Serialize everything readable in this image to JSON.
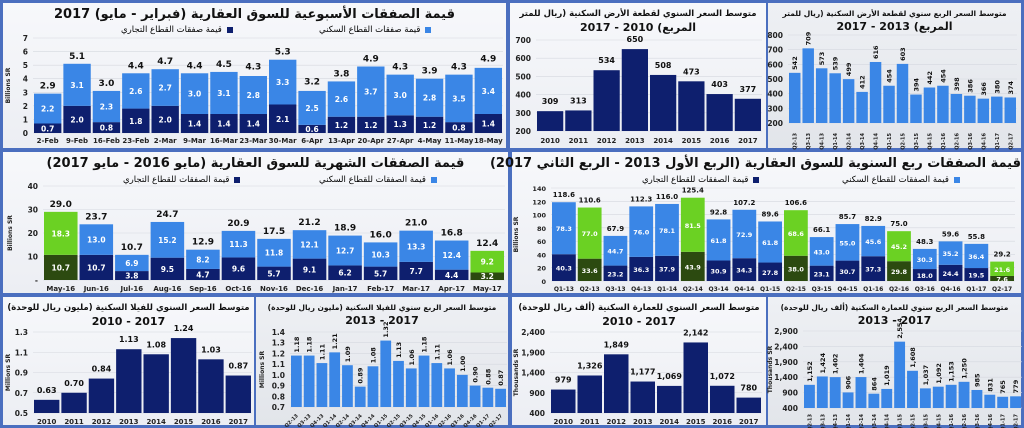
{
  "colors": {
    "commercial": "#0e1f6e",
    "residential": "#3a86e6",
    "highlight_residential": "#6bd123",
    "highlight_commercial": "#2c4a10",
    "text": "#111111"
  },
  "panels": {
    "weekly": {
      "title": "قيمة الصفقات الأسبوعية للسوق العقارية (فبراير - مايو) 2017",
      "legend_commercial": "قيمة صفقات القطاع التجاري",
      "legend_residential": "قيمة صفقات القطاع السكني"
    },
    "land_annual": {
      "title_line1": "متوسط السعر السنوي لقطعة الأرض السكنية (ريال للمتر",
      "title_line2": "المربع) 2010 - 2017"
    },
    "land_quarterly": {
      "title_line1": "متوسط السعر الربع سنوي لقطعة الأرض السكنية (ريال للمتر",
      "title_line2": "المربع) 2013 - 2017"
    },
    "monthly": {
      "title": "قيمة الصفقات الشهرية للسوق العقارية (مايو 2016 - مايو 2017)",
      "legend_commercial": "قيمة الصفقات للقطاع التجاري",
      "legend_residential": "قيمة الصفقات للقطاع السكني"
    },
    "quarterly": {
      "title": "قيمة الصفقات ربع السنوية للسوق العقارية (الربع الأول 2013 - الربع الثاني 2017)",
      "legend_commercial": "قيمة الصفقات للقطاع التجاري",
      "legend_residential": "قيمة الصفقات للقطاع السكني"
    },
    "villa_annual": {
      "title_line1": "متوسط السعر السنوي للفيلا السكنية  (مليون ريال للوحدة)",
      "title_line2": "2017 - 2010"
    },
    "villa_quarterly": {
      "title_line1": "متوسط السعر الربع سنوي للفيلا السكنية  (مليون ريال للوحدة)",
      "title_line2": "2017 - 2013"
    },
    "apt_annual": {
      "title_line1": "متوسط السعر السنوي للعمارة السكنية  (ألف ريال للوحدة)",
      "title_line2": "2017 - 2010"
    },
    "apt_quarterly": {
      "title_line1": "متوسط السعر الربع سنوي للعمارة السكنية  (ألف ريال للوحدة)",
      "title_line2": "2017 - 2013"
    }
  },
  "chart_data": [
    {
      "type": "bar",
      "stacked": true,
      "ylabel": "Billions SR",
      "ylim": [
        0,
        7
      ],
      "yticks": [
        "0",
        "1",
        "2",
        "3",
        "4",
        "5",
        "6",
        "7"
      ],
      "decimals": 1,
      "categories": [
        "2-Feb",
        "9-Feb",
        "16-Feb",
        "23-Feb",
        "2-Mar",
        "9-Mar",
        "16-Mar",
        "23-Mar",
        "30-Mar",
        "6-Apr",
        "13-Apr",
        "20-Apr",
        "27-Apr",
        "4-May",
        "11-May",
        "18-May"
      ],
      "commercial": [
        0.7,
        2.0,
        0.8,
        1.8,
        2.0,
        1.4,
        1.4,
        1.4,
        2.1,
        0.6,
        1.2,
        1.2,
        1.3,
        1.2,
        0.8,
        1.4
      ],
      "residential": [
        2.2,
        3.1,
        2.3,
        2.6,
        2.7,
        3.0,
        3.1,
        2.8,
        3.3,
        2.5,
        2.6,
        3.7,
        3.0,
        2.8,
        3.5,
        3.4
      ],
      "totals": [
        2.9,
        5.1,
        3.0,
        4.4,
        4.7,
        4.4,
        4.5,
        4.3,
        5.3,
        3.2,
        3.8,
        4.9,
        4.3,
        3.9,
        4.3,
        4.9
      ],
      "highlight": []
    },
    {
      "type": "bar",
      "ylabel": "",
      "ylim": [
        200,
        700
      ],
      "yticks": [
        "200",
        "300",
        "400",
        "500",
        "600",
        "700"
      ],
      "decimals": 0,
      "color": "commercial",
      "categories": [
        "2010",
        "2011",
        "2012",
        "2013",
        "2014",
        "2015",
        "2016",
        "2017"
      ],
      "values": [
        309,
        313,
        534,
        650,
        508,
        473,
        403,
        377
      ]
    },
    {
      "type": "bar",
      "ylabel": "",
      "ylim": [
        200,
        800
      ],
      "yticks": [
        "200",
        "300",
        "400",
        "500",
        "600",
        "700",
        "800"
      ],
      "decimals": 0,
      "color": "residential",
      "categories": [
        "Q2-13",
        "Q3-13",
        "Q4-13",
        "Q1-14",
        "Q2-14",
        "Q3-14",
        "Q4-14",
        "Q1-15",
        "Q2-15",
        "Q3-15",
        "Q4-15",
        "Q1-16",
        "Q2-16",
        "Q3-16",
        "Q4-16",
        "Q1-17",
        "Q2-17"
      ],
      "values": [
        542,
        709,
        573,
        539,
        499,
        412,
        616,
        454,
        603,
        394,
        442,
        454,
        398,
        386,
        366,
        380,
        374
      ]
    },
    {
      "type": "bar",
      "stacked": true,
      "ylabel": "Billions SR",
      "ylim": [
        0,
        40
      ],
      "yticks": [
        "-",
        "10",
        "20",
        "30",
        "40"
      ],
      "decimals": 1,
      "categories": [
        "May-16",
        "Jun-16",
        "Jul-16",
        "Aug-16",
        "Sep-16",
        "Oct-16",
        "Nov-16",
        "Dec-16",
        "Jan-17",
        "Feb-17",
        "Mar-17",
        "Apr-17",
        "May-17"
      ],
      "commercial": [
        10.7,
        10.7,
        3.8,
        9.5,
        4.7,
        9.6,
        5.7,
        9.1,
        6.2,
        5.7,
        7.7,
        4.4,
        3.2
      ],
      "residential": [
        18.3,
        13.0,
        6.9,
        15.2,
        8.2,
        11.3,
        11.8,
        12.1,
        12.7,
        10.3,
        13.3,
        12.4,
        9.2
      ],
      "totals": [
        29.0,
        23.7,
        10.7,
        24.7,
        12.9,
        20.9,
        17.5,
        21.2,
        18.9,
        16.0,
        21.0,
        16.8,
        12.4
      ],
      "highlight": [
        0,
        12
      ]
    },
    {
      "type": "bar",
      "stacked": true,
      "ylabel": "Billions SR",
      "ylim": [
        0,
        140
      ],
      "yticks": [
        "0",
        "20",
        "40",
        "60",
        "80",
        "100",
        "120",
        "140"
      ],
      "decimals": 1,
      "categories": [
        "Q1-13",
        "Q2-13",
        "Q3-13",
        "Q4-13",
        "Q1-14",
        "Q2-14",
        "Q3-14",
        "Q4-14",
        "Q1-15",
        "Q2-15",
        "Q3-15",
        "Q4-15",
        "Q1-16",
        "Q2-16",
        "Q3-16",
        "Q4-16",
        "Q1-17",
        "Q2-17"
      ],
      "commercial": [
        40.3,
        33.6,
        23.2,
        36.3,
        37.9,
        43.9,
        30.9,
        34.3,
        27.8,
        38.0,
        23.1,
        30.7,
        37.3,
        29.8,
        18.0,
        24.4,
        19.5,
        7.6
      ],
      "residential": [
        78.3,
        77.0,
        44.7,
        76.0,
        78.1,
        81.5,
        61.8,
        72.9,
        61.8,
        68.6,
        43.0,
        55.0,
        45.6,
        45.2,
        30.3,
        35.2,
        36.4,
        21.6
      ],
      "totals": [
        118.6,
        110.6,
        67.9,
        112.3,
        116.0,
        125.4,
        92.8,
        107.2,
        89.6,
        106.6,
        66.1,
        85.7,
        82.9,
        75.0,
        48.3,
        59.6,
        55.8,
        29.2
      ],
      "highlight": [
        1,
        5,
        9,
        13,
        17
      ]
    },
    {
      "type": "bar",
      "ylabel": "Millions SR",
      "ylim": [
        0.5,
        1.3
      ],
      "yticks": [
        "0.5",
        "0.7",
        "0.9",
        "1.1",
        "1.3"
      ],
      "decimals": 2,
      "color": "commercial",
      "categories": [
        "2010",
        "2011",
        "2012",
        "2013",
        "2014",
        "2015",
        "2016",
        "2017"
      ],
      "values": [
        0.63,
        0.7,
        0.84,
        1.13,
        1.08,
        1.24,
        1.03,
        0.87
      ]
    },
    {
      "type": "bar",
      "ylabel": "Millions SR",
      "ylim": [
        0.7,
        1.4
      ],
      "yticks": [
        "0.7",
        "0.8",
        "0.9",
        "1.0",
        "1.1",
        "1.2",
        "1.3",
        "1.4"
      ],
      "decimals": 2,
      "color": "residential",
      "categories": [
        "Q2-13",
        "Q3-13",
        "Q4-13",
        "Q1-14",
        "Q2-14",
        "Q3-14",
        "Q4-14",
        "Q1-15",
        "Q2-15",
        "Q3-15",
        "Q4-15",
        "Q1-16",
        "Q2-16",
        "Q3-16",
        "Q4-16",
        "Q1-17",
        "Q2-17"
      ],
      "values": [
        1.18,
        1.18,
        1.11,
        1.21,
        1.09,
        0.89,
        1.08,
        1.32,
        1.13,
        1.06,
        1.18,
        1.11,
        1.06,
        1.0,
        0.9,
        0.88,
        0.87
      ]
    },
    {
      "type": "bar",
      "ylabel": "Thousands SR",
      "ylim": [
        400,
        2400
      ],
      "yticks": [
        "400",
        "900",
        "1,400",
        "1,900",
        "2,400"
      ],
      "decimals": 0,
      "thousands": true,
      "color": "commercial",
      "categories": [
        "2010",
        "2011",
        "2012",
        "2013",
        "2014",
        "2015",
        "2016",
        "2017"
      ],
      "values": [
        979,
        1326,
        1849,
        1177,
        1069,
        2142,
        1072,
        780
      ]
    },
    {
      "type": "bar",
      "ylabel": "Thousands SR",
      "ylim": [
        400,
        2900
      ],
      "yticks": [
        "400",
        "900",
        "1,400",
        "1,900",
        "2,400",
        "2,900"
      ],
      "decimals": 0,
      "thousands": true,
      "color": "residential",
      "categories": [
        "Q2-13",
        "Q3-13",
        "Q4-13",
        "Q1-14",
        "Q2-14",
        "Q3-14",
        "Q4-14",
        "Q1-15",
        "Q2-15",
        "Q3-15",
        "Q4-15",
        "Q1-16",
        "Q2-16",
        "Q3-16",
        "Q4-16",
        "Q1-17",
        "Q2-17"
      ],
      "values": [
        1152,
        1424,
        1402,
        906,
        1404,
        864,
        1019,
        2554,
        1608,
        1037,
        1092,
        1153,
        1250,
        985,
        831,
        765,
        779
      ]
    }
  ]
}
